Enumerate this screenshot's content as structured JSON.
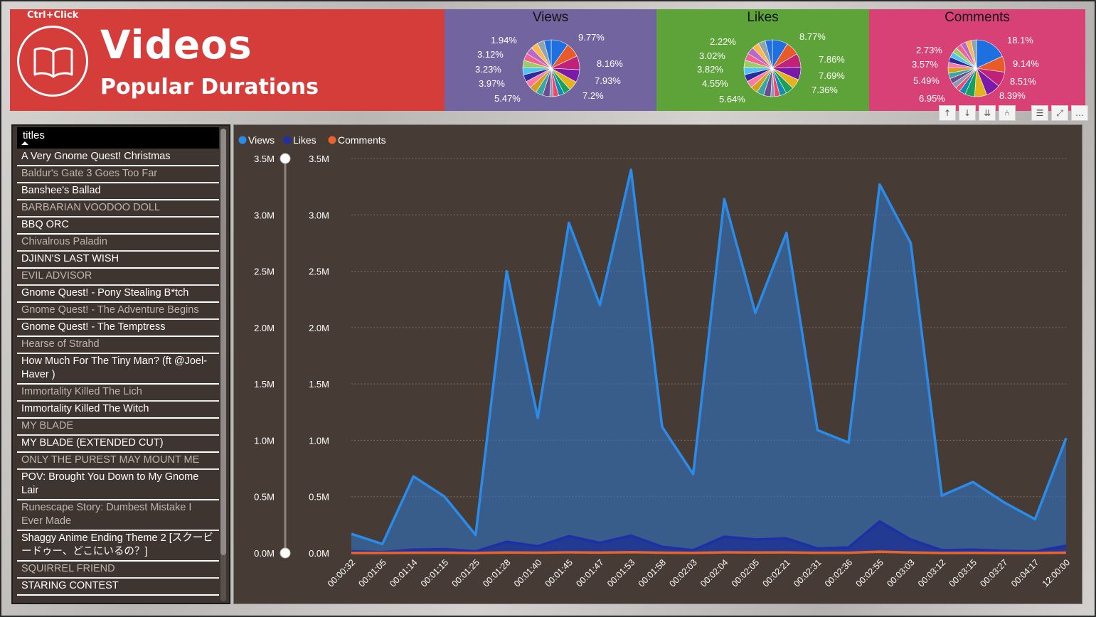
{
  "header": {
    "ctrl_hint": "Ctrl+Click",
    "title": "Videos",
    "subtitle": "Popular Durations",
    "brand_color": "#d43d3a"
  },
  "pies": {
    "views": {
      "title": "Views",
      "labels": [
        "9.77%",
        "8.16%",
        "7.93%",
        "7.2%",
        "5.47%",
        "3.97%",
        "3.23%",
        "3.12%",
        "1.94%"
      ],
      "panel_color": "#72659f"
    },
    "likes": {
      "title": "Likes",
      "labels": [
        "8.77%",
        "7.86%",
        "7.69%",
        "7.36%",
        "5.64%",
        "4.55%",
        "3.82%",
        "3.02%",
        "2.22%"
      ],
      "panel_color": "#5ea23a"
    },
    "comments": {
      "title": "Comments",
      "labels": [
        "18.1%",
        "9.14%",
        "8.51%",
        "8.39%",
        "6.95%",
        "5.49%",
        "3.57%",
        "2.73%"
      ],
      "panel_color": "#d84176"
    }
  },
  "toolbar": {
    "icons": [
      "arrow-up-icon",
      "arrow-down-icon",
      "double-arrow-down-icon",
      "expand-hierarchy-icon",
      "filter-icon",
      "focus-mode-icon",
      "more-options-icon"
    ]
  },
  "slicer": {
    "header": "titles",
    "items": [
      {
        "label": "A Very Gnome Quest! Christmas",
        "selected": true
      },
      {
        "label": "Baldur's Gate 3 Goes Too Far",
        "selected": false
      },
      {
        "label": "Banshee's Ballad",
        "selected": true
      },
      {
        "label": "BARBARIAN VOODOO DOLL",
        "selected": false
      },
      {
        "label": "BBQ ORC",
        "selected": true
      },
      {
        "label": "Chivalrous Paladin",
        "selected": false
      },
      {
        "label": "DJINN'S LAST WISH",
        "selected": true
      },
      {
        "label": "EVIL ADVISOR",
        "selected": false
      },
      {
        "label": "Gnome Quest! - Pony Stealing B*tch",
        "selected": true
      },
      {
        "label": "Gnome Quest! - The Adventure Begins",
        "selected": false
      },
      {
        "label": "Gnome Quest! - The Temptress",
        "selected": true
      },
      {
        "label": "Hearse of Strahd",
        "selected": false
      },
      {
        "label": "How Much For The Tiny Man? (ft @Joel-Haver )",
        "selected": true
      },
      {
        "label": "Immortality Killed The Lich",
        "selected": false
      },
      {
        "label": "Immortality Killed The Witch",
        "selected": true
      },
      {
        "label": "MY BLADE",
        "selected": false
      },
      {
        "label": "MY BLADE (EXTENDED CUT)",
        "selected": true
      },
      {
        "label": "ONLY THE PUREST MAY MOUNT ME",
        "selected": false
      },
      {
        "label": "POV: Brought You Down to My Gnome Lair",
        "selected": true
      },
      {
        "label": "Runescape Story: Dumbest Mistake I Ever Made",
        "selected": false
      },
      {
        "label": "Shaggy Anime Ending Theme 2 [スクービードゥー、どこにいるの？]",
        "selected": true
      },
      {
        "label": "SQUIRREL FRIEND",
        "selected": false
      },
      {
        "label": "STARING CONTEST",
        "selected": true
      }
    ]
  },
  "chart_data": {
    "type": "area",
    "legend_position": "top-left",
    "grid": true,
    "x": [
      "00:00:32",
      "00:01:05",
      "00:01:14",
      "00:01:15",
      "00:01:25",
      "00:01:28",
      "00:01:40",
      "00:01:45",
      "00:01:47",
      "00:01:53",
      "00:01:58",
      "00:02:03",
      "00:02:04",
      "00:02:05",
      "00:02:21",
      "00:02:31",
      "00:02:36",
      "00:02:55",
      "00:03:03",
      "00:03:12",
      "00:03:15",
      "00:03:27",
      "00:04:17",
      "12:00:00"
    ],
    "y_ticks": [
      "0.0M",
      "0.5M",
      "1.0M",
      "1.5M",
      "2.0M",
      "2.5M",
      "3.0M",
      "3.5M"
    ],
    "ylim": [
      0,
      3500000
    ],
    "series": [
      {
        "name": "Views",
        "color": "#2b8be9",
        "values": [
          170000,
          80000,
          680000,
          500000,
          160000,
          2500000,
          1200000,
          2930000,
          2200000,
          3400000,
          1120000,
          700000,
          3140000,
          2130000,
          2840000,
          1090000,
          980000,
          3270000,
          2750000,
          510000,
          630000,
          450000,
          300000,
          1020000
        ]
      },
      {
        "name": "Likes",
        "color": "#1f2fa6",
        "values": [
          15000,
          8000,
          30000,
          35000,
          15000,
          100000,
          60000,
          150000,
          90000,
          155000,
          55000,
          25000,
          145000,
          120000,
          130000,
          40000,
          50000,
          280000,
          120000,
          25000,
          30000,
          20000,
          15000,
          65000
        ]
      },
      {
        "name": "Comments",
        "color": "#e8642c",
        "values": [
          1000,
          500,
          2000,
          2500,
          1000,
          5000,
          3000,
          6000,
          4000,
          7000,
          3000,
          1500,
          6000,
          5000,
          5500,
          2000,
          2500,
          12000,
          5000,
          1000,
          1500,
          1000,
          800,
          3000
        ]
      }
    ],
    "ylabel": "",
    "xlabel": ""
  }
}
